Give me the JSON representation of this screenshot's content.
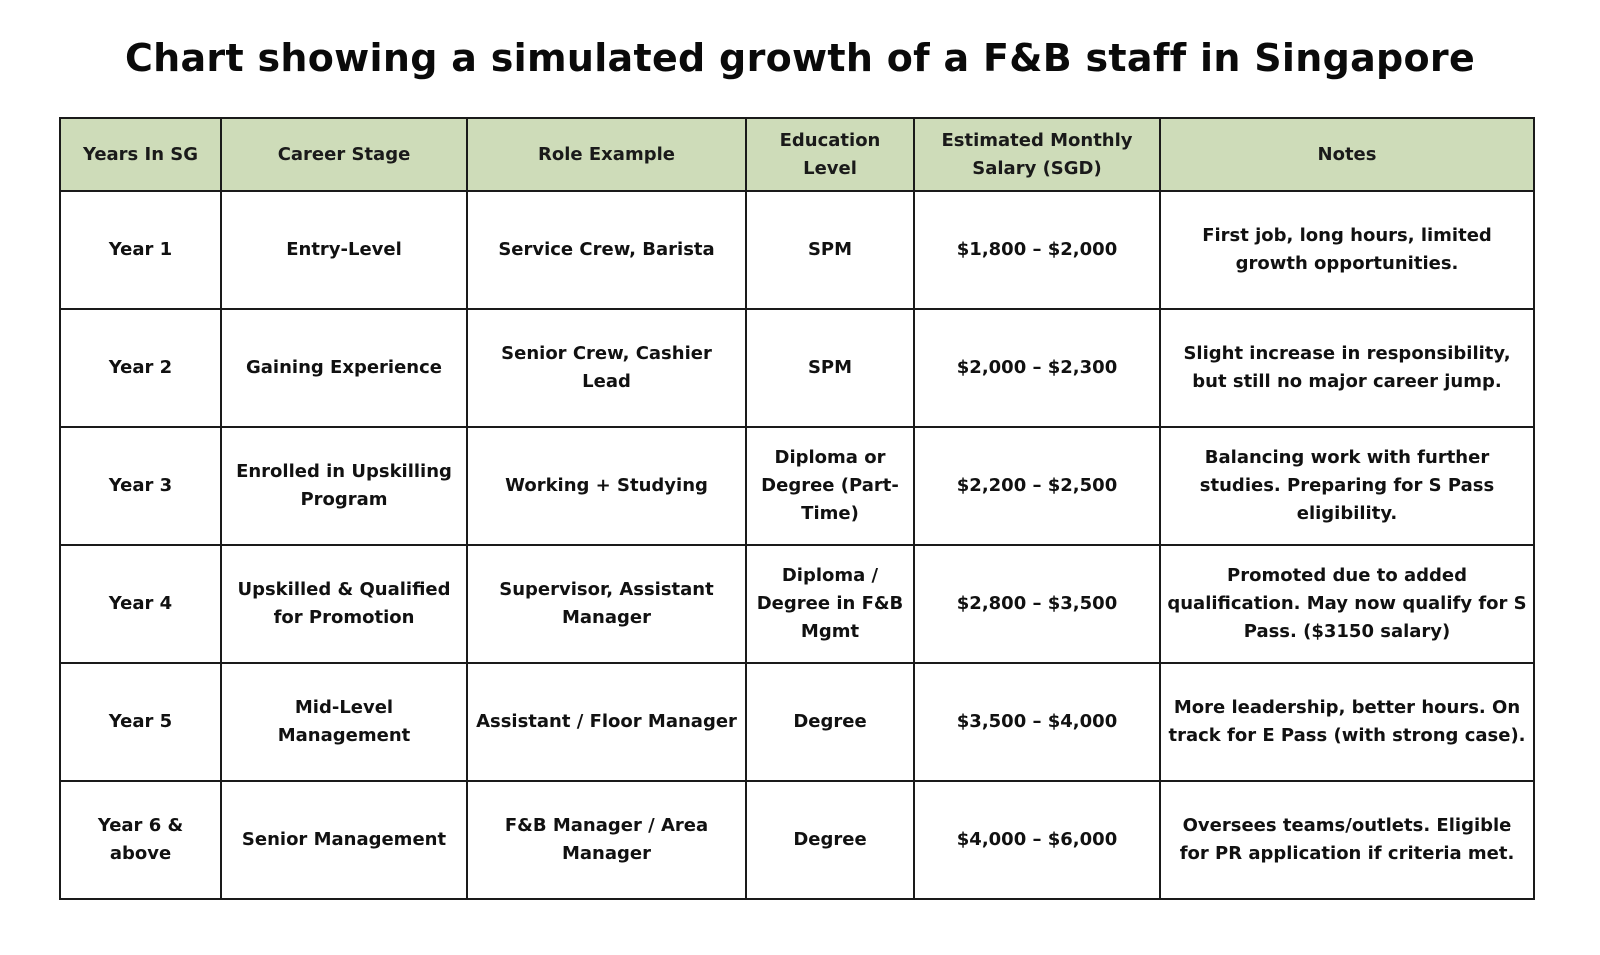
{
  "chart_data": {
    "type": "table",
    "title": "Chart showing a simulated growth of a F&B staff in Singapore",
    "columns": [
      "Years In SG",
      "Career Stage",
      "Role Example",
      "Education Level",
      "Estimated Monthly Salary (SGD)",
      "Notes"
    ],
    "rows": [
      [
        "Year 1",
        "Entry-Level",
        "Service Crew, Barista",
        "SPM",
        "$1,800 – $2,000",
        "First job, long hours, limited growth opportunities."
      ],
      [
        "Year 2",
        "Gaining Experience",
        "Senior Crew, Cashier Lead",
        "SPM",
        "$2,000 – $2,300",
        "Slight increase in responsibility, but still no major career jump."
      ],
      [
        "Year 3",
        "Enrolled in Upskilling Program",
        "Working + Studying",
        "Diploma or Degree (Part-Time)",
        "$2,200 – $2,500",
        "Balancing work with further studies. Preparing for S Pass eligibility."
      ],
      [
        "Year 4",
        "Upskilled & Qualified for Promotion",
        "Supervisor, Assistant Manager",
        "Diploma / Degree in F&B Mgmt",
        "$2,800 – $3,500",
        "Promoted due to added qualification. May now qualify for S Pass. ($3150 salary)"
      ],
      [
        "Year 5",
        "Mid-Level Management",
        "Assistant / Floor Manager",
        "Degree",
        "$3,500 – $4,000",
        "More leadership, better hours. On track for E Pass (with strong case)."
      ],
      [
        "Year 6 & above",
        "Senior Management",
        "F&B Manager / Area Manager",
        "Degree",
        "$4,000 – $6,000",
        "Oversees teams/outlets. Eligible for PR application if criteria met."
      ]
    ],
    "header_color": "#cedcb9"
  }
}
